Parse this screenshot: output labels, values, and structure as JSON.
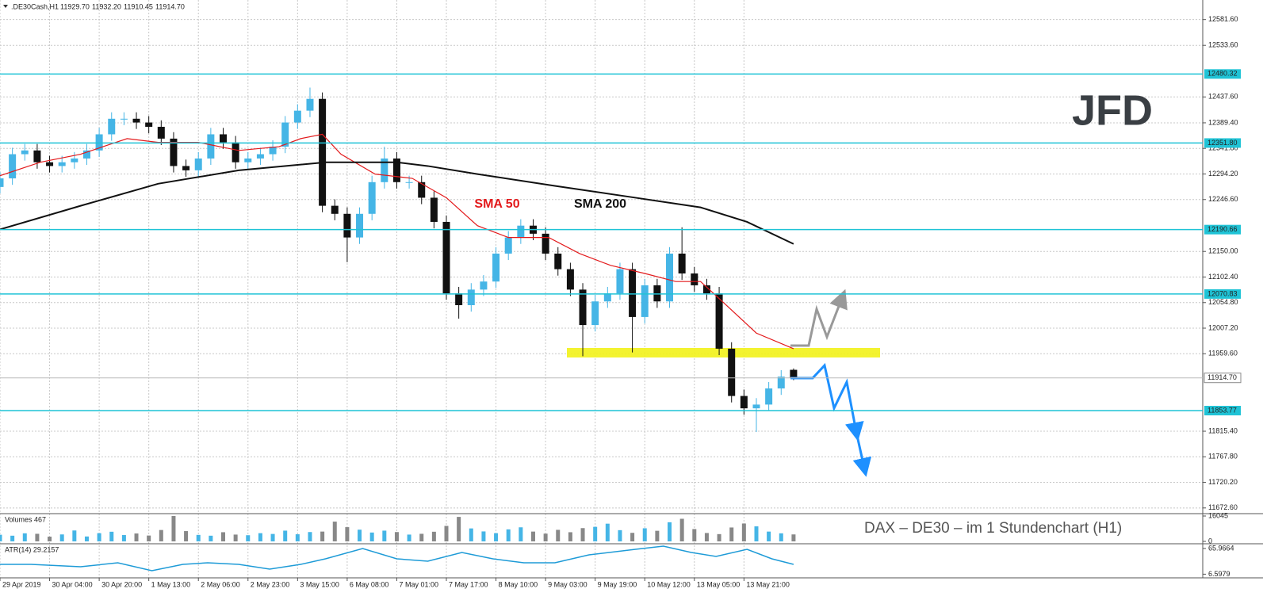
{
  "chart_data": [
    {
      "type": "candlestick",
      "symbol": ".DE30Cash,H1",
      "info_labels": [
        "11929.70",
        "11932.20",
        "11910.45",
        "11914.70"
      ],
      "watermark": "JFD",
      "x": [
        0,
        4,
        8,
        12,
        16,
        20,
        24,
        28,
        32,
        36,
        40,
        44,
        48,
        52,
        56,
        60,
        64,
        68,
        72,
        76,
        80,
        84,
        88,
        92,
        96,
        100,
        104,
        108,
        112,
        116,
        120,
        124,
        128,
        132,
        136,
        140,
        144,
        148,
        152,
        156,
        160,
        164,
        168,
        172,
        176,
        180,
        184,
        188,
        192,
        196,
        200,
        204,
        208,
        212,
        216,
        220,
        224,
        228,
        232,
        236,
        240,
        244,
        248,
        252,
        256
      ],
      "open": [
        12270,
        12286,
        12331,
        12338,
        12316,
        12309,
        12316,
        12323,
        12338,
        12368,
        12397,
        12397,
        12390,
        12382,
        12360,
        12309,
        12301,
        12323,
        12368,
        12353,
        12316,
        12323,
        12331,
        12345,
        12390,
        12412,
        12434,
        12235,
        12220,
        12176,
        12220,
        12279,
        12323,
        12279,
        12279,
        12250,
        12205,
        12072,
        12050,
        12079,
        12094,
        12146,
        12176,
        12198,
        12183,
        12146,
        12117,
        12079,
        12013,
        12057,
        12072,
        12117,
        12028,
        12087,
        12057,
        12146,
        12109,
        12087,
        12072,
        11969,
        11881,
        11858,
        11865,
        11895,
        11929.7
      ],
      "high": [
        12298,
        12343,
        12350,
        12350,
        12328,
        12328,
        12335,
        12350,
        12380,
        12409,
        12409,
        12409,
        12402,
        12394,
        12372,
        12321,
        12335,
        12380,
        12380,
        12365,
        12335,
        12343,
        12357,
        12402,
        12424,
        12455,
        12446,
        12247,
        12232,
        12232,
        12291,
        12345,
        12335,
        12291,
        12291,
        12262,
        12217,
        12084,
        12091,
        12106,
        12158,
        12188,
        12210,
        12210,
        12195,
        12158,
        12129,
        12091,
        12069,
        12084,
        12129,
        12129,
        12099,
        12099,
        12158,
        12195,
        12121,
        12099,
        12084,
        11981,
        11893,
        11877,
        11907,
        11929,
        11932.2
      ],
      "low": [
        12258,
        12274,
        12319,
        12304,
        12297,
        12297,
        12304,
        12311,
        12326,
        12356,
        12385,
        12378,
        12370,
        12348,
        12297,
        12289,
        12289,
        12311,
        12341,
        12304,
        12304,
        12311,
        12319,
        12333,
        12378,
        12400,
        12223,
        12208,
        12130,
        12164,
        12208,
        12267,
        12267,
        12267,
        12238,
        12193,
        12060,
        12025,
        12038,
        12067,
        12082,
        12134,
        12164,
        12171,
        12134,
        12105,
        12067,
        11955,
        12001,
        12045,
        12060,
        11962,
        12016,
        12045,
        12045,
        12097,
        12075,
        12060,
        11957,
        11869,
        11846,
        11814,
        11853,
        11883,
        11910.45
      ],
      "close": [
        12286,
        12331,
        12338,
        12316,
        12309,
        12316,
        12323,
        12338,
        12368,
        12397,
        12397,
        12390,
        12382,
        12360,
        12309,
        12301,
        12323,
        12368,
        12353,
        12316,
        12323,
        12331,
        12345,
        12390,
        12412,
        12434,
        12235,
        12220,
        12176,
        12220,
        12279,
        12323,
        12279,
        12279,
        12250,
        12205,
        12072,
        12050,
        12079,
        12094,
        12146,
        12176,
        12198,
        12183,
        12146,
        12117,
        12079,
        12013,
        12057,
        12072,
        12117,
        12028,
        12087,
        12057,
        12146,
        12109,
        12087,
        12072,
        11969,
        11881,
        11858,
        11865,
        11895,
        11917,
        11914.7
      ],
      "up_color": "#45b5e6",
      "down_color": "#111111",
      "series": [
        {
          "name": "SMA 50",
          "color": "#e31a1c",
          "x": [
            0,
            13,
            26,
            41,
            51,
            64,
            77,
            90,
            97,
            104,
            110,
            121,
            133,
            144,
            154,
            164,
            177,
            187,
            197,
            208,
            218,
            226,
            233,
            244,
            256
          ],
          "values": [
            12291,
            12316,
            12331,
            12360,
            12353,
            12353,
            12338,
            12345,
            12360,
            12368,
            12331,
            12294,
            12286,
            12250,
            12198,
            12176,
            12176,
            12146,
            12124,
            12109,
            12094,
            12094,
            12057,
            11998,
            11969
          ]
        },
        {
          "name": "SMA 200",
          "color": "#111111",
          "x": [
            0,
            26,
            51,
            77,
            105,
            128,
            138,
            154,
            179,
            205,
            226,
            241,
            256
          ],
          "values": [
            12191,
            12235,
            12276,
            12301,
            12316,
            12316,
            12309,
            12294,
            12272,
            12250,
            12232,
            12205,
            12164
          ]
        }
      ],
      "levels": {
        "color": "#1fc3d6",
        "values": [
          12480.32,
          12351.8,
          12190.66,
          12070.83,
          11853.77
        ],
        "value_labels": [
          "12480.32",
          "12351.80",
          "12190.66",
          "12070.83",
          "11853.77"
        ]
      },
      "last_price": {
        "value": 11914.7,
        "label": "11914.70"
      },
      "caption": "DAX – DE30 –  im  1 Stundenchart (H1)",
      "xlim": [
        0,
        388
      ],
      "ylim": [
        11662,
        12618
      ],
      "grid": true,
      "yticks": [
        {
          "value": 12581.6,
          "label": "12581.60"
        },
        {
          "value": 12533.6,
          "label": "12533.60"
        },
        {
          "value": 12437.6,
          "label": "12437.60"
        },
        {
          "value": 12389.4,
          "label": "12389.40"
        },
        {
          "value": 12341.8,
          "label": "12341.80"
        },
        {
          "value": 12294.2,
          "label": "12294.20"
        },
        {
          "value": 12246.6,
          "label": "12246.60"
        },
        {
          "value": 12150,
          "label": "12150.00"
        },
        {
          "value": 12102.4,
          "label": "12102.40"
        },
        {
          "value": 12054.8,
          "label": "12054.80"
        },
        {
          "value": 12007.2,
          "label": "12007.20"
        },
        {
          "value": 11959.6,
          "label": "11959.60"
        },
        {
          "value": 11815.4,
          "label": "11815.40"
        },
        {
          "value": 11767.8,
          "label": "11767.80"
        },
        {
          "value": 11720.2,
          "label": "11720.20"
        },
        {
          "value": 11672.6,
          "label": "11672.60"
        }
      ],
      "xticks": [
        {
          "value": 0,
          "label": "29 Apr 2019"
        },
        {
          "value": 16,
          "label": "30 Apr 04:00"
        },
        {
          "value": 32,
          "label": "30 Apr 20:00"
        },
        {
          "value": 48,
          "label": "1 May 13:00"
        },
        {
          "value": 64,
          "label": "2 May 06:00"
        },
        {
          "value": 80,
          "label": "2 May 23:00"
        },
        {
          "value": 96,
          "label": "3 May 15:00"
        },
        {
          "value": 112,
          "label": "6 May 08:00"
        },
        {
          "value": 128,
          "label": "7 May 01:00"
        },
        {
          "value": 144,
          "label": "7 May 17:00"
        },
        {
          "value": 160,
          "label": "8 May 10:00"
        },
        {
          "value": 176,
          "label": "9 May 03:00"
        },
        {
          "value": 192,
          "label": "9 May 19:00"
        },
        {
          "value": 208,
          "label": "10 May 12:00"
        },
        {
          "value": 224,
          "label": "13 May 05:00"
        },
        {
          "value": 240,
          "label": "13 May 21:00"
        }
      ]
    },
    {
      "type": "bar",
      "title": "Volumes 467",
      "ylim": [
        0,
        16045
      ],
      "yticks": [
        16045,
        0
      ],
      "values": [
        4200,
        3600,
        5100,
        4800,
        3000,
        4400,
        6900,
        3100,
        5200,
        6100,
        4000,
        5000,
        3700,
        7200,
        16045,
        6500,
        4100,
        3600,
        5800,
        4300,
        3900,
        5200,
        4700,
        6800,
        4500,
        5900,
        6200,
        12500,
        9000,
        7400,
        5600,
        6800,
        5900,
        4300,
        4800,
        6100,
        9800,
        15500,
        8200,
        6300,
        5200,
        7600,
        8900,
        6200,
        4900,
        7300,
        5800,
        8400,
        9200,
        11200,
        7100,
        5400,
        8300,
        6700,
        12100,
        14300,
        7800,
        5300,
        4600,
        8800,
        11300,
        9500,
        6200,
        5100,
        4400
      ]
    },
    {
      "type": "line",
      "title": "ATR(14) 29.2157",
      "color": "#1e9bd7",
      "ylim": [
        0,
        75
      ],
      "yticks": [
        65.9664,
        6.5979
      ],
      "x": [
        0,
        10,
        26,
        38,
        49,
        59,
        67,
        77,
        87,
        97,
        105,
        117,
        128,
        138,
        149,
        159,
        169,
        179,
        190,
        205,
        214,
        223,
        231,
        241,
        249,
        256
      ],
      "values": [
        29.3,
        29.3,
        23.8,
        32.9,
        14.6,
        29.3,
        32.9,
        29.3,
        18.3,
        29.3,
        42.1,
        65.9,
        42.1,
        36.6,
        56.7,
        42.1,
        32.9,
        32.9,
        51.2,
        64,
        71.3,
        56.7,
        47.6,
        64,
        42.1,
        29.2157
      ]
    }
  ]
}
